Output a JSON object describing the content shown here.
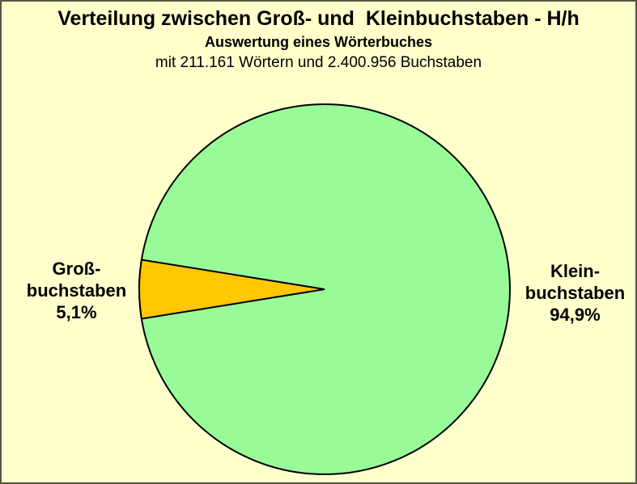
{
  "page": {
    "background_color": "#FFFFCC",
    "border_color": "#555544"
  },
  "header": {
    "title": "Verteilung zwischen Groß- und  Kleinbuchstaben - H/h",
    "subtitle": "Auswertung eines Wörterbuches",
    "description": "mit 211.161 Wörtern und 2.400.956 Buchstaben"
  },
  "chart_data": {
    "type": "pie",
    "title": "Verteilung zwischen Groß- und  Kleinbuchstaben - H/h",
    "subtitle": "Auswertung eines Wörterbuches",
    "description": "mit 211.161 Wörtern und 2.400.956 Buchstaben",
    "legend_position": "none",
    "outline_color": "#000000",
    "small_slice_points_deg": 180,
    "slices": [
      {
        "name": "Kleinbuchstaben",
        "value": 94.9,
        "percent_label": "94,9%",
        "color": "#98FB98",
        "callout": "Klein-\nbuchstaben\n94,9%",
        "callout_side": "right"
      },
      {
        "name": "Großbuchstaben",
        "value": 5.1,
        "percent_label": "5,1%",
        "color": "#FFC800",
        "callout": "Groß-\nbuchstaben\n5,1%",
        "callout_side": "left"
      }
    ]
  }
}
